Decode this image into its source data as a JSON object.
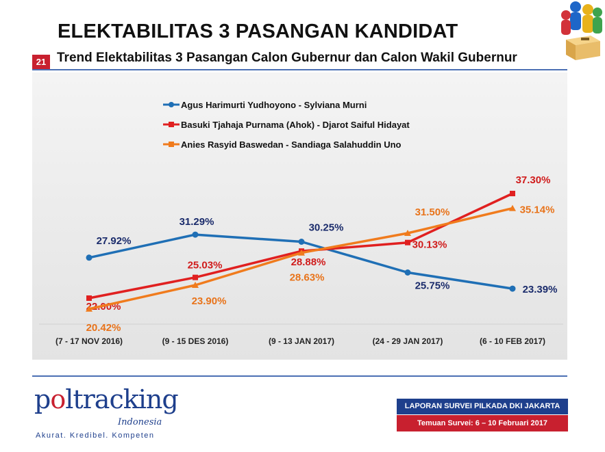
{
  "header": {
    "title": "ELEKTABILITAS 3 PASANGAN KANDIDAT",
    "slide_number": "21",
    "subtitle": "Trend Elektabilitas 3 Pasangan Calon Gubernur dan Calon Wakil Gubernur"
  },
  "chart_data": {
    "type": "line",
    "categories": [
      "(7 - 17 NOV 2016)",
      "(9 - 15 DES 2016)",
      "(9 - 13 JAN 2017)",
      "(24 - 29 JAN 2017)",
      "(6 - 10 FEB 2017)"
    ],
    "ylim": [
      15,
      45
    ],
    "grid": false,
    "legend_position": "top-left",
    "series": [
      {
        "name": "Agus Harimurti Yudhoyono - Sylviana Murni",
        "color": "#1f6fb5",
        "label_color": "#1a2b6b",
        "values": [
          27.92,
          31.29,
          30.25,
          25.75,
          23.39
        ],
        "labels": [
          "27.92%",
          "31.29%",
          "30.25%",
          "25.75%",
          "23.39%"
        ]
      },
      {
        "name": "Basuki Tjahaja Purnama (Ahok) - Djarot Saiful Hidayat",
        "color": "#e02020",
        "label_color": "#d01c1c",
        "values": [
          22.0,
          25.03,
          28.88,
          30.13,
          37.3
        ],
        "labels": [
          "22.00%",
          "25.03%",
          "28.88%",
          "30.13%",
          "37.30%"
        ]
      },
      {
        "name": "Anies Rasyid Baswedan - Sandiaga Salahuddin Uno",
        "color": "#f07b1d",
        "label_color": "#e8731a",
        "values": [
          20.42,
          23.9,
          28.63,
          31.5,
          35.14
        ],
        "labels": [
          "20.42%",
          "23.90%",
          "28.63%",
          "31.50%",
          "35.14%"
        ]
      }
    ]
  },
  "footer": {
    "logo_main_prefix": "p",
    "logo_main_mark": "o",
    "logo_main_rest": "ltracking",
    "logo_sub": "Indonesia",
    "logo_tagline": "Akurat. Kredibel. Kompeten",
    "report_title": "LAPORAN SURVEI PILKADA DKI JAKARTA",
    "survey_dates": "Temuan Survei: 6 – 10 Februari 2017"
  }
}
